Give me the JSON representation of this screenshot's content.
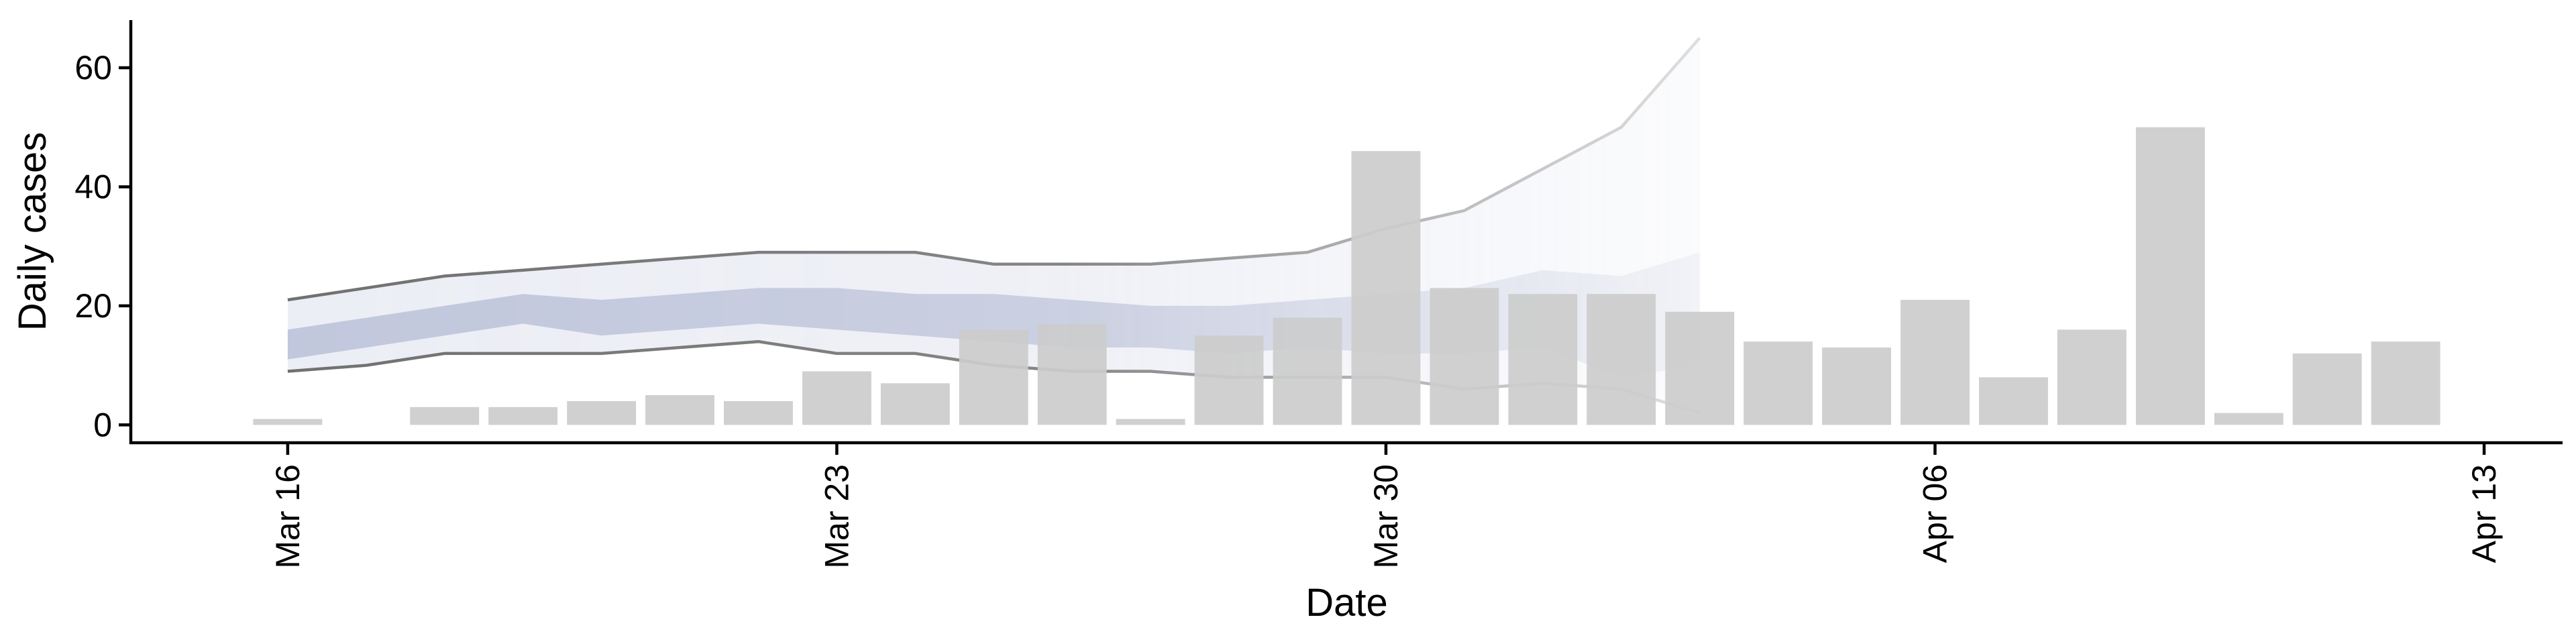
{
  "chart_data": {
    "type": "bar",
    "xlabel": "Date",
    "ylabel": "Daily cases",
    "x_axis": {
      "type": "date",
      "range": [
        "2020-03-14",
        "2020-04-14"
      ],
      "ticks": [
        {
          "date": "2020-03-16",
          "label": "Mar 16"
        },
        {
          "date": "2020-03-23",
          "label": "Mar 23"
        },
        {
          "date": "2020-03-30",
          "label": "Mar 30"
        },
        {
          "date": "2020-04-06",
          "label": "Apr 06"
        },
        {
          "date": "2020-04-13",
          "label": "Apr 13"
        }
      ]
    },
    "y_axis": {
      "range": [
        -3,
        68
      ],
      "ticks": [
        0,
        20,
        40,
        60
      ]
    },
    "bar_color": "#cccccc",
    "bars": [
      {
        "date": "2020-03-16",
        "value": 1
      },
      {
        "date": "2020-03-18",
        "value": 3
      },
      {
        "date": "2020-03-19",
        "value": 3
      },
      {
        "date": "2020-03-20",
        "value": 4
      },
      {
        "date": "2020-03-21",
        "value": 5
      },
      {
        "date": "2020-03-22",
        "value": 4
      },
      {
        "date": "2020-03-23",
        "value": 9
      },
      {
        "date": "2020-03-24",
        "value": 7
      },
      {
        "date": "2020-03-25",
        "value": 16
      },
      {
        "date": "2020-03-26",
        "value": 17
      },
      {
        "date": "2020-03-27",
        "value": 1
      },
      {
        "date": "2020-03-28",
        "value": 15
      },
      {
        "date": "2020-03-29",
        "value": 18
      },
      {
        "date": "2020-03-30",
        "value": 46
      },
      {
        "date": "2020-03-31",
        "value": 23
      },
      {
        "date": "2020-04-01",
        "value": 22
      },
      {
        "date": "2020-04-02",
        "value": 22
      },
      {
        "date": "2020-04-03",
        "value": 19
      },
      {
        "date": "2020-04-04",
        "value": 14
      },
      {
        "date": "2020-04-05",
        "value": 13
      },
      {
        "date": "2020-04-06",
        "value": 21
      },
      {
        "date": "2020-04-07",
        "value": 8
      },
      {
        "date": "2020-04-08",
        "value": 16
      },
      {
        "date": "2020-04-09",
        "value": 50
      },
      {
        "date": "2020-04-10",
        "value": 2
      },
      {
        "date": "2020-04-11",
        "value": 12
      },
      {
        "date": "2020-04-12",
        "value": 14
      }
    ],
    "projection": {
      "outer_band_color": "#e6e8f2",
      "inner_band_color": "#b3bad4",
      "line_color": "#707070",
      "dates": [
        "2020-03-16",
        "2020-03-17",
        "2020-03-18",
        "2020-03-19",
        "2020-03-20",
        "2020-03-21",
        "2020-03-22",
        "2020-03-23",
        "2020-03-24",
        "2020-03-25",
        "2020-03-26",
        "2020-03-27",
        "2020-03-28",
        "2020-03-29",
        "2020-03-30",
        "2020-03-31",
        "2020-04-01",
        "2020-04-02",
        "2020-04-03"
      ],
      "outer_upper": [
        21,
        23,
        25,
        26,
        27,
        28,
        29,
        29,
        29,
        27,
        27,
        27,
        28,
        29,
        33,
        36,
        43,
        50,
        65
      ],
      "outer_lower": [
        9,
        10,
        12,
        12,
        12,
        13,
        14,
        12,
        12,
        10,
        9,
        9,
        8,
        8,
        8,
        6,
        7,
        6,
        2
      ],
      "inner_upper": [
        16,
        18,
        20,
        22,
        21,
        22,
        23,
        23,
        22,
        22,
        21,
        20,
        20,
        21,
        22,
        23,
        26,
        25,
        29
      ],
      "inner_lower": [
        11,
        13,
        15,
        17,
        15,
        16,
        17,
        16,
        15,
        14,
        13,
        13,
        12,
        13,
        12,
        12,
        13,
        8,
        10
      ]
    }
  }
}
